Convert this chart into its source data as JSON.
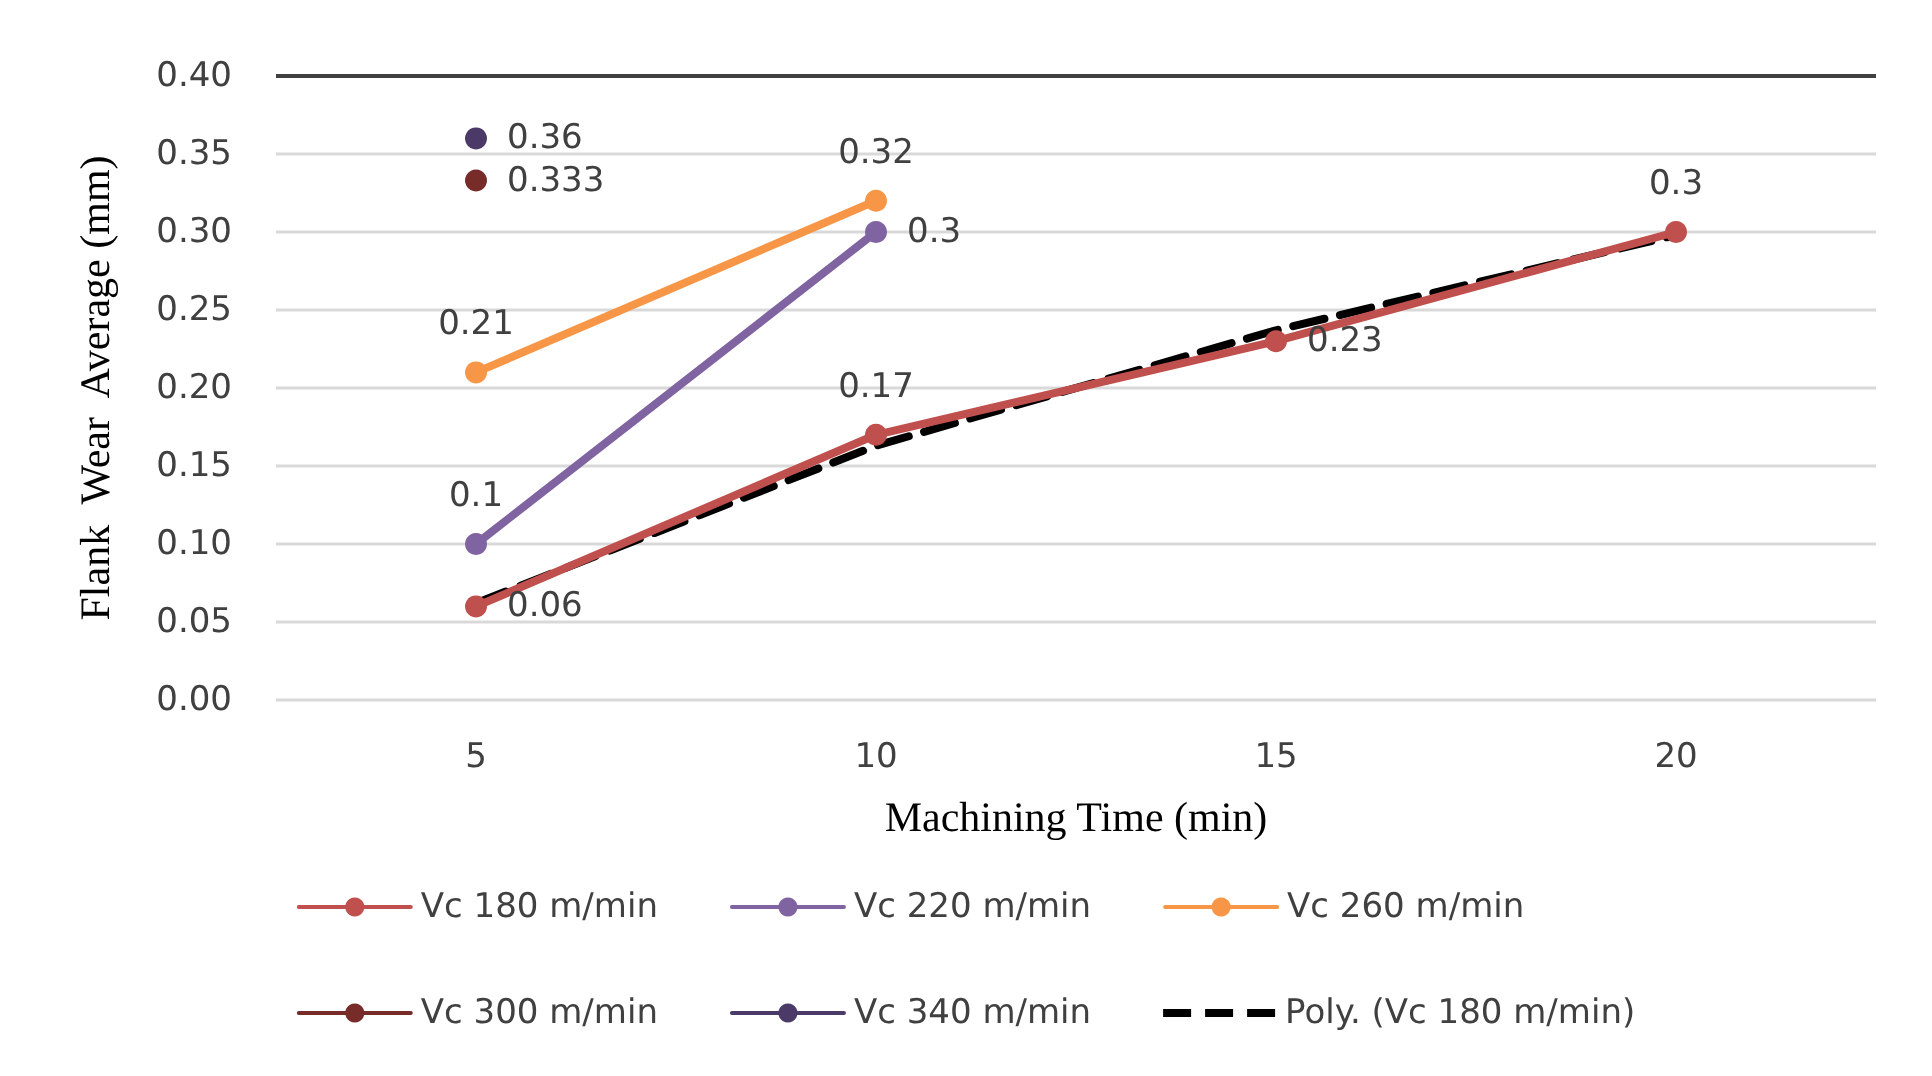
{
  "chart_data": {
    "type": "line",
    "xlabel": "Machining Time (min)",
    "ylabel": "Flank  Wear  Average (mm)",
    "categories": [
      "5",
      "10",
      "15",
      "20"
    ],
    "ylim": [
      0,
      0.4
    ],
    "yticks": [
      {
        "value": 0,
        "label": "0.00"
      },
      {
        "value": 0.05,
        "label": "0.05"
      },
      {
        "value": 0.1,
        "label": "0.10"
      },
      {
        "value": 0.15,
        "label": "0.15"
      },
      {
        "value": 0.2,
        "label": "0.20"
      },
      {
        "value": 0.25,
        "label": "0.25"
      },
      {
        "value": 0.3,
        "label": "0.30"
      },
      {
        "value": 0.35,
        "label": "0.35"
      },
      {
        "value": 0.4,
        "label": "0.40"
      }
    ],
    "grid": "y",
    "legend": "bottom",
    "marker": "circle",
    "line_style": "solid",
    "ref_lines": [
      {
        "axis": "y",
        "value": 0.4,
        "label": null,
        "color": "#404040"
      }
    ],
    "series": [
      {
        "name": "Vc 180 m/min",
        "color": "#c0504d",
        "values": [
          0.06,
          0.17,
          0.23,
          0.3
        ],
        "value_labels": [
          "0.06",
          "0.17",
          "0.23",
          "0.3"
        ]
      },
      {
        "name": "Vc 220 m/min",
        "color": "#8064a2",
        "values": [
          0.1,
          0.3,
          null,
          null
        ],
        "value_labels": [
          "0.1",
          "0.3",
          null,
          null
        ]
      },
      {
        "name": "Vc 260 m/min",
        "color": "#f79646",
        "values": [
          0.21,
          0.32,
          null,
          null
        ],
        "value_labels": [
          "0.21",
          "0.32",
          null,
          null
        ]
      },
      {
        "name": "Vc 300 m/min",
        "color": "#772c2a",
        "values": [
          0.333,
          null,
          null,
          null
        ],
        "value_labels": [
          "0.333",
          null,
          null,
          null
        ]
      },
      {
        "name": "Vc 340 m/min",
        "color": "#4b3a68",
        "values": [
          0.36,
          null,
          null,
          null
        ],
        "value_labels": [
          "0.36",
          null,
          null,
          null
        ]
      },
      {
        "name": "Poly. (Vc 180 m/min)",
        "color": "#000000",
        "values": [
          0.062,
          0.163,
          0.237,
          0.298
        ],
        "marker": "none",
        "line_style": "dashed"
      }
    ]
  }
}
